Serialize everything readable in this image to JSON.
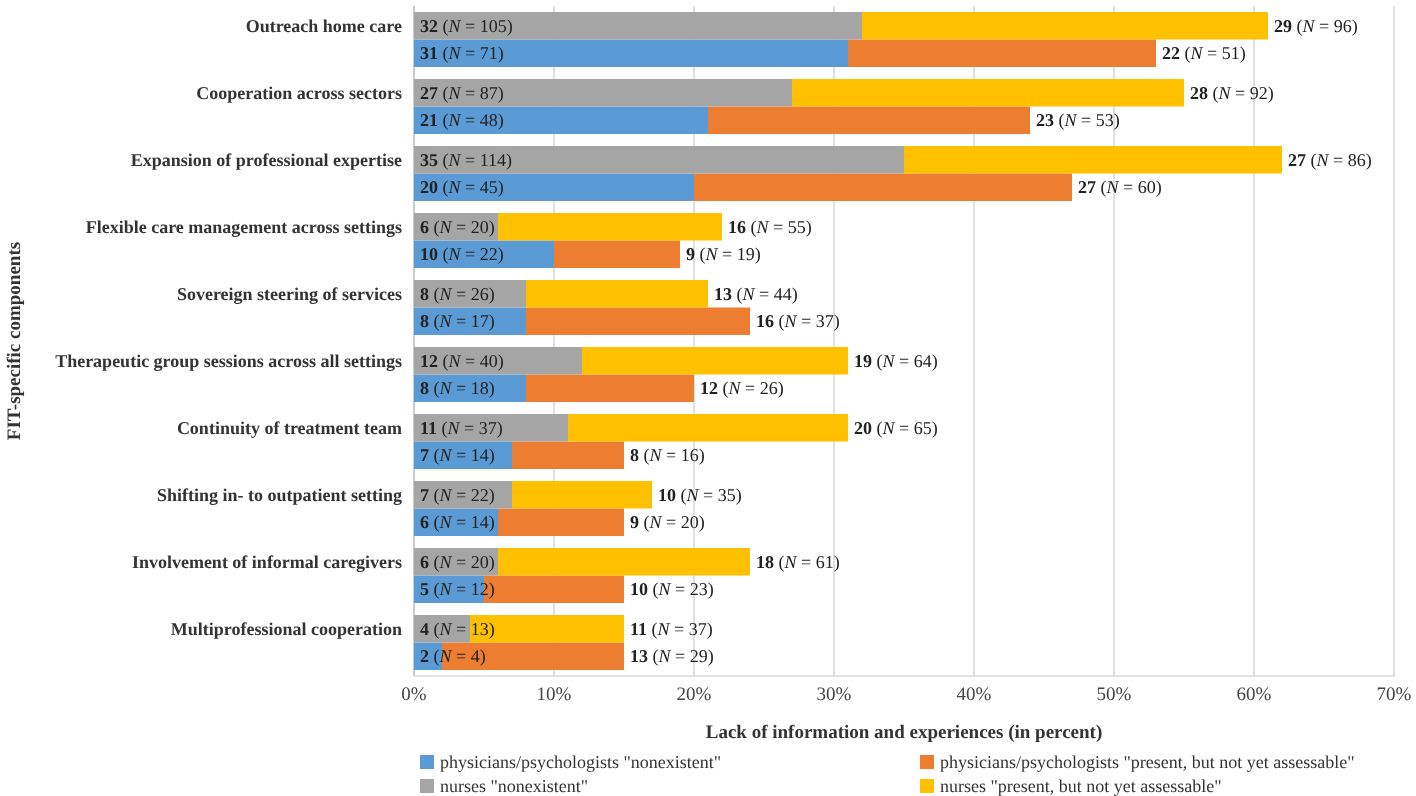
{
  "chart_data": {
    "type": "bar",
    "orientation": "horizontal",
    "stacked": true,
    "ylabel": "FIT-specific components",
    "xlabel": "Lack of information and experiences (in percent)",
    "categories": [
      "Outreach home care",
      null,
      "Cooperation across sectors",
      null,
      "Expansion of professional expertise",
      null,
      "Flexible care management across settings",
      null,
      "Sovereign steering of services",
      null,
      "Therapeutic group sessions across all settings",
      null,
      "Continuity of treatment team",
      null,
      "Shifting in- to outpatient setting",
      null,
      "Involvement of informal caregivers",
      null,
      "Multiprofessional cooperation",
      null
    ],
    "xlim": [
      0,
      70
    ],
    "xticks": [
      {
        "value": 0,
        "label": "0%"
      },
      {
        "value": 10,
        "label": "10%"
      },
      {
        "value": 20,
        "label": "20%"
      },
      {
        "value": 30,
        "label": "30%"
      },
      {
        "value": 40,
        "label": "40%"
      },
      {
        "value": 50,
        "label": "50%"
      },
      {
        "value": 60,
        "label": "60%"
      },
      {
        "value": 70,
        "label": "70%"
      }
    ],
    "grid": "x",
    "legend": "bottom",
    "series": [
      {
        "name": "physicians/psychologists \"nonexistent\"",
        "color": "#5b9bd5",
        "values": [
          null,
          31,
          null,
          21,
          null,
          20,
          null,
          10,
          null,
          8,
          null,
          8,
          null,
          7,
          null,
          6,
          null,
          5,
          null,
          2
        ],
        "value_labels": [
          null,
          "31 (N = 71)",
          null,
          "21 (N = 48)",
          null,
          "20 (N = 45)",
          null,
          "10 (N = 22)",
          null,
          "8 (N = 17)",
          null,
          "8 (N = 18)",
          null,
          "7 (N = 14)",
          null,
          "6 (N = 14)",
          null,
          "5 (N = 12)",
          null,
          "2 (N = 4)"
        ]
      },
      {
        "name": "physicians/psychologists \"present, but not yet assessable\"",
        "color": "#ed7d31",
        "values": [
          null,
          22,
          null,
          23,
          null,
          27,
          null,
          9,
          null,
          16,
          null,
          12,
          null,
          8,
          null,
          9,
          null,
          10,
          null,
          13
        ],
        "value_labels": [
          null,
          "22 (N = 51)",
          null,
          "23 (N = 53)",
          null,
          "27 (N = 60)",
          null,
          "9 (N = 19)",
          null,
          "16 (N = 37)",
          null,
          "12 (N = 26)",
          null,
          "8 (N = 16)",
          null,
          "9 (N = 20)",
          null,
          "10 (N = 23)",
          null,
          "13 (N = 29)"
        ]
      },
      {
        "name": "nurses \"nonexistent\"",
        "color": "#a5a5a5",
        "values": [
          32,
          null,
          27,
          null,
          35,
          null,
          6,
          null,
          8,
          null,
          12,
          null,
          11,
          null,
          7,
          null,
          6,
          null,
          4,
          null
        ],
        "value_labels": [
          "32 (N = 105)",
          null,
          "27 (N = 87)",
          null,
          "35 (N = 114)",
          null,
          "6 (N = 20)",
          null,
          "8 (N = 26)",
          null,
          "12 (N = 40)",
          null,
          "11 (N = 37)",
          null,
          "7 (N = 22)",
          null,
          "6 (N = 20)",
          null,
          "4 (N = 13)",
          null
        ]
      },
      {
        "name": "nurses \"present, but not yet assessable\"",
        "color": "#ffc000",
        "values": [
          29,
          null,
          28,
          null,
          27,
          null,
          16,
          null,
          13,
          null,
          19,
          null,
          20,
          null,
          10,
          null,
          18,
          null,
          11,
          null
        ],
        "value_labels": [
          "29 (N = 96)",
          null,
          "28 (N = 92)",
          null,
          "27 (N = 86)",
          null,
          "16 (N = 55)",
          null,
          "13 (N = 44)",
          null,
          "19 (N = 64)",
          null,
          "20 (N = 65)",
          null,
          "10 (N = 35)",
          null,
          "18 (N = 61)",
          null,
          "11 (N = 37)",
          null
        ]
      }
    ]
  }
}
